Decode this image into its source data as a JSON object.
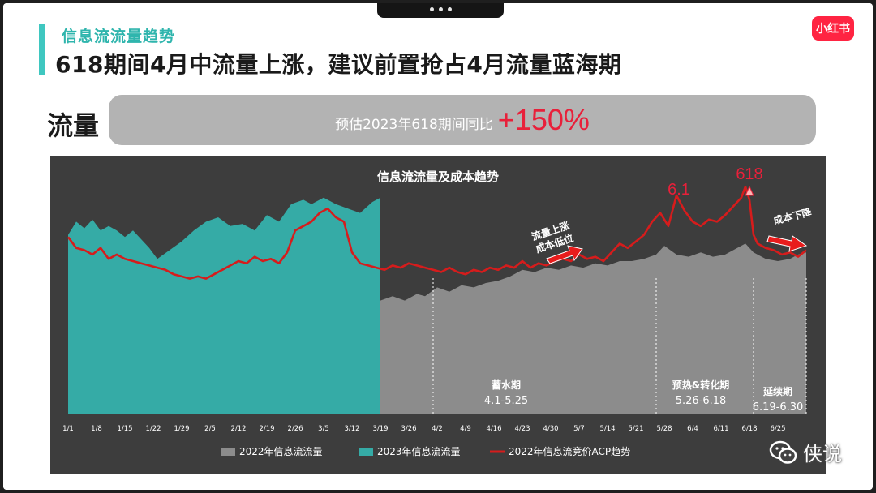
{
  "header": {
    "kicker": "信息流流量趋势",
    "title": "618期间4月中流量上涨，建议前置抢占4月流量蓝海期",
    "logo_text": "小红书"
  },
  "summary": {
    "label": "流量",
    "text": "预估2023年618期间同比",
    "value": "+150%",
    "value_color": "#e8203a"
  },
  "watermark": {
    "text": "侠说",
    "icon": "wechat-icon"
  },
  "chart_data": {
    "type": "area",
    "title": "信息流流量及成本趋势",
    "x_range": [
      0,
      182
    ],
    "ylim": [
      0,
      100
    ],
    "x_ticks": [
      {
        "label": "1/1",
        "day": 0
      },
      {
        "label": "1/8",
        "day": 7
      },
      {
        "label": "1/15",
        "day": 14
      },
      {
        "label": "1/22",
        "day": 21
      },
      {
        "label": "1/29",
        "day": 28
      },
      {
        "label": "2/5",
        "day": 35
      },
      {
        "label": "2/12",
        "day": 42
      },
      {
        "label": "2/19",
        "day": 49
      },
      {
        "label": "2/26",
        "day": 56
      },
      {
        "label": "3/5",
        "day": 63
      },
      {
        "label": "3/12",
        "day": 70
      },
      {
        "label": "3/19",
        "day": 77
      },
      {
        "label": "3/26",
        "day": 84
      },
      {
        "label": "4/2",
        "day": 91
      },
      {
        "label": "4/9",
        "day": 98
      },
      {
        "label": "4/16",
        "day": 105
      },
      {
        "label": "4/23",
        "day": 112
      },
      {
        "label": "4/30",
        "day": 119
      },
      {
        "label": "5/7",
        "day": 126
      },
      {
        "label": "5/14",
        "day": 133
      },
      {
        "label": "5/21",
        "day": 140
      },
      {
        "label": "5/28",
        "day": 147
      },
      {
        "label": "6/4",
        "day": 154
      },
      {
        "label": "6/11",
        "day": 161
      },
      {
        "label": "6/18",
        "day": 168
      },
      {
        "label": "6/25",
        "day": 175
      }
    ],
    "series": [
      {
        "name": "2022年信息流流量",
        "color": "#8c8c8c",
        "points": [
          [
            0,
            48
          ],
          [
            3,
            45
          ],
          [
            6,
            46
          ],
          [
            9,
            43
          ],
          [
            12,
            47
          ],
          [
            15,
            44
          ],
          [
            18,
            46
          ],
          [
            21,
            42
          ],
          [
            24,
            44
          ],
          [
            27,
            40
          ],
          [
            30,
            42
          ],
          [
            33,
            41
          ],
          [
            36,
            43
          ],
          [
            39,
            42
          ],
          [
            42,
            44
          ],
          [
            45,
            42
          ],
          [
            48,
            43
          ],
          [
            51,
            41
          ],
          [
            54,
            44
          ],
          [
            57,
            46
          ],
          [
            60,
            48
          ],
          [
            63,
            52
          ],
          [
            66,
            48
          ],
          [
            69,
            49
          ],
          [
            72,
            50
          ],
          [
            75,
            50
          ],
          [
            77,
            52
          ],
          [
            80,
            54
          ],
          [
            83,
            52
          ],
          [
            86,
            55
          ],
          [
            88,
            54
          ],
          [
            91,
            58
          ],
          [
            94,
            56
          ],
          [
            97,
            59
          ],
          [
            100,
            58
          ],
          [
            103,
            60
          ],
          [
            106,
            61
          ],
          [
            109,
            63
          ],
          [
            112,
            66
          ],
          [
            115,
            65
          ],
          [
            118,
            67
          ],
          [
            121,
            66
          ],
          [
            124,
            68
          ],
          [
            127,
            67
          ],
          [
            130,
            69
          ],
          [
            133,
            68
          ],
          [
            136,
            70
          ],
          [
            139,
            70
          ],
          [
            142,
            71
          ],
          [
            145,
            73
          ],
          [
            147,
            77
          ],
          [
            150,
            73
          ],
          [
            153,
            72
          ],
          [
            156,
            74
          ],
          [
            159,
            72
          ],
          [
            162,
            73
          ],
          [
            165,
            76
          ],
          [
            167,
            78
          ],
          [
            169,
            74
          ],
          [
            172,
            71
          ],
          [
            175,
            70
          ],
          [
            178,
            71
          ],
          [
            180,
            73
          ],
          [
            182,
            74
          ]
        ]
      },
      {
        "name": "2023年信息流流量",
        "color": "#35aba6",
        "points": [
          [
            0,
            82
          ],
          [
            2,
            88
          ],
          [
            4,
            85
          ],
          [
            6,
            89
          ],
          [
            8,
            84
          ],
          [
            10,
            86
          ],
          [
            12,
            84
          ],
          [
            14,
            81
          ],
          [
            16,
            84
          ],
          [
            18,
            80
          ],
          [
            20,
            76
          ],
          [
            22,
            71
          ],
          [
            25,
            75
          ],
          [
            28,
            79
          ],
          [
            31,
            84
          ],
          [
            34,
            88
          ],
          [
            37,
            90
          ],
          [
            40,
            86
          ],
          [
            43,
            87
          ],
          [
            46,
            84
          ],
          [
            49,
            91
          ],
          [
            52,
            88
          ],
          [
            55,
            96
          ],
          [
            58,
            98
          ],
          [
            60,
            96
          ],
          [
            63,
            99
          ],
          [
            66,
            96
          ],
          [
            69,
            94
          ],
          [
            72,
            92
          ],
          [
            75,
            97
          ],
          [
            77,
            99
          ]
        ]
      },
      {
        "name": "2022年信息流竞价ACP趋势",
        "color": "#d61c1c",
        "points": [
          [
            0,
            81
          ],
          [
            2,
            76
          ],
          [
            4,
            75
          ],
          [
            6,
            73
          ],
          [
            8,
            76
          ],
          [
            10,
            71
          ],
          [
            12,
            73
          ],
          [
            14,
            71
          ],
          [
            16,
            70
          ],
          [
            18,
            69
          ],
          [
            20,
            68
          ],
          [
            22,
            67
          ],
          [
            24,
            66
          ],
          [
            26,
            64
          ],
          [
            28,
            63
          ],
          [
            30,
            62
          ],
          [
            32,
            63
          ],
          [
            34,
            62
          ],
          [
            36,
            64
          ],
          [
            38,
            66
          ],
          [
            40,
            68
          ],
          [
            42,
            70
          ],
          [
            44,
            69
          ],
          [
            46,
            72
          ],
          [
            48,
            70
          ],
          [
            50,
            71
          ],
          [
            52,
            69
          ],
          [
            54,
            74
          ],
          [
            56,
            84
          ],
          [
            58,
            86
          ],
          [
            60,
            88
          ],
          [
            62,
            92
          ],
          [
            64,
            94
          ],
          [
            66,
            90
          ],
          [
            68,
            88
          ],
          [
            70,
            74
          ],
          [
            72,
            69
          ],
          [
            74,
            68
          ],
          [
            76,
            67
          ],
          [
            78,
            66
          ],
          [
            80,
            68
          ],
          [
            82,
            67
          ],
          [
            84,
            69
          ],
          [
            86,
            68
          ],
          [
            88,
            67
          ],
          [
            90,
            66
          ],
          [
            92,
            65
          ],
          [
            94,
            67
          ],
          [
            96,
            65
          ],
          [
            98,
            64
          ],
          [
            100,
            66
          ],
          [
            102,
            65
          ],
          [
            104,
            67
          ],
          [
            106,
            66
          ],
          [
            108,
            68
          ],
          [
            110,
            67
          ],
          [
            112,
            70
          ],
          [
            114,
            67
          ],
          [
            116,
            69
          ],
          [
            118,
            68
          ],
          [
            120,
            70
          ],
          [
            122,
            71
          ],
          [
            124,
            70
          ],
          [
            126,
            73
          ],
          [
            128,
            71
          ],
          [
            130,
            72
          ],
          [
            132,
            70
          ],
          [
            134,
            74
          ],
          [
            136,
            78
          ],
          [
            138,
            76
          ],
          [
            140,
            79
          ],
          [
            142,
            82
          ],
          [
            144,
            88
          ],
          [
            146,
            92
          ],
          [
            148,
            86
          ],
          [
            150,
            100
          ],
          [
            152,
            93
          ],
          [
            154,
            88
          ],
          [
            156,
            86
          ],
          [
            158,
            89
          ],
          [
            160,
            88
          ],
          [
            162,
            91
          ],
          [
            164,
            95
          ],
          [
            166,
            99
          ],
          [
            167,
            104
          ],
          [
            168,
            98
          ],
          [
            169,
            82
          ],
          [
            170,
            78
          ],
          [
            172,
            76
          ],
          [
            174,
            75
          ],
          [
            176,
            73
          ],
          [
            178,
            74
          ],
          [
            180,
            72
          ],
          [
            182,
            75
          ]
        ]
      }
    ],
    "phases": [
      {
        "name": "蓄水期",
        "range": "4.1-5.25",
        "start_day": 90
      },
      {
        "name": "预热&转化期",
        "range": "5.26-6.18",
        "start_day": 145
      },
      {
        "name": "延续期",
        "range": "6.19-6.30",
        "start_day": 169
      }
    ],
    "annotations": [
      {
        "text": "6.1",
        "day": 151,
        "color": "#e8203a"
      },
      {
        "text": "618",
        "day": 168,
        "color": "#e8203a"
      },
      {
        "text": "流量上涨",
        "line2": "成本低位",
        "day": 120
      },
      {
        "text": "成本下降",
        "day": 176
      }
    ],
    "legend_position": "bottom-center",
    "grid": false
  }
}
